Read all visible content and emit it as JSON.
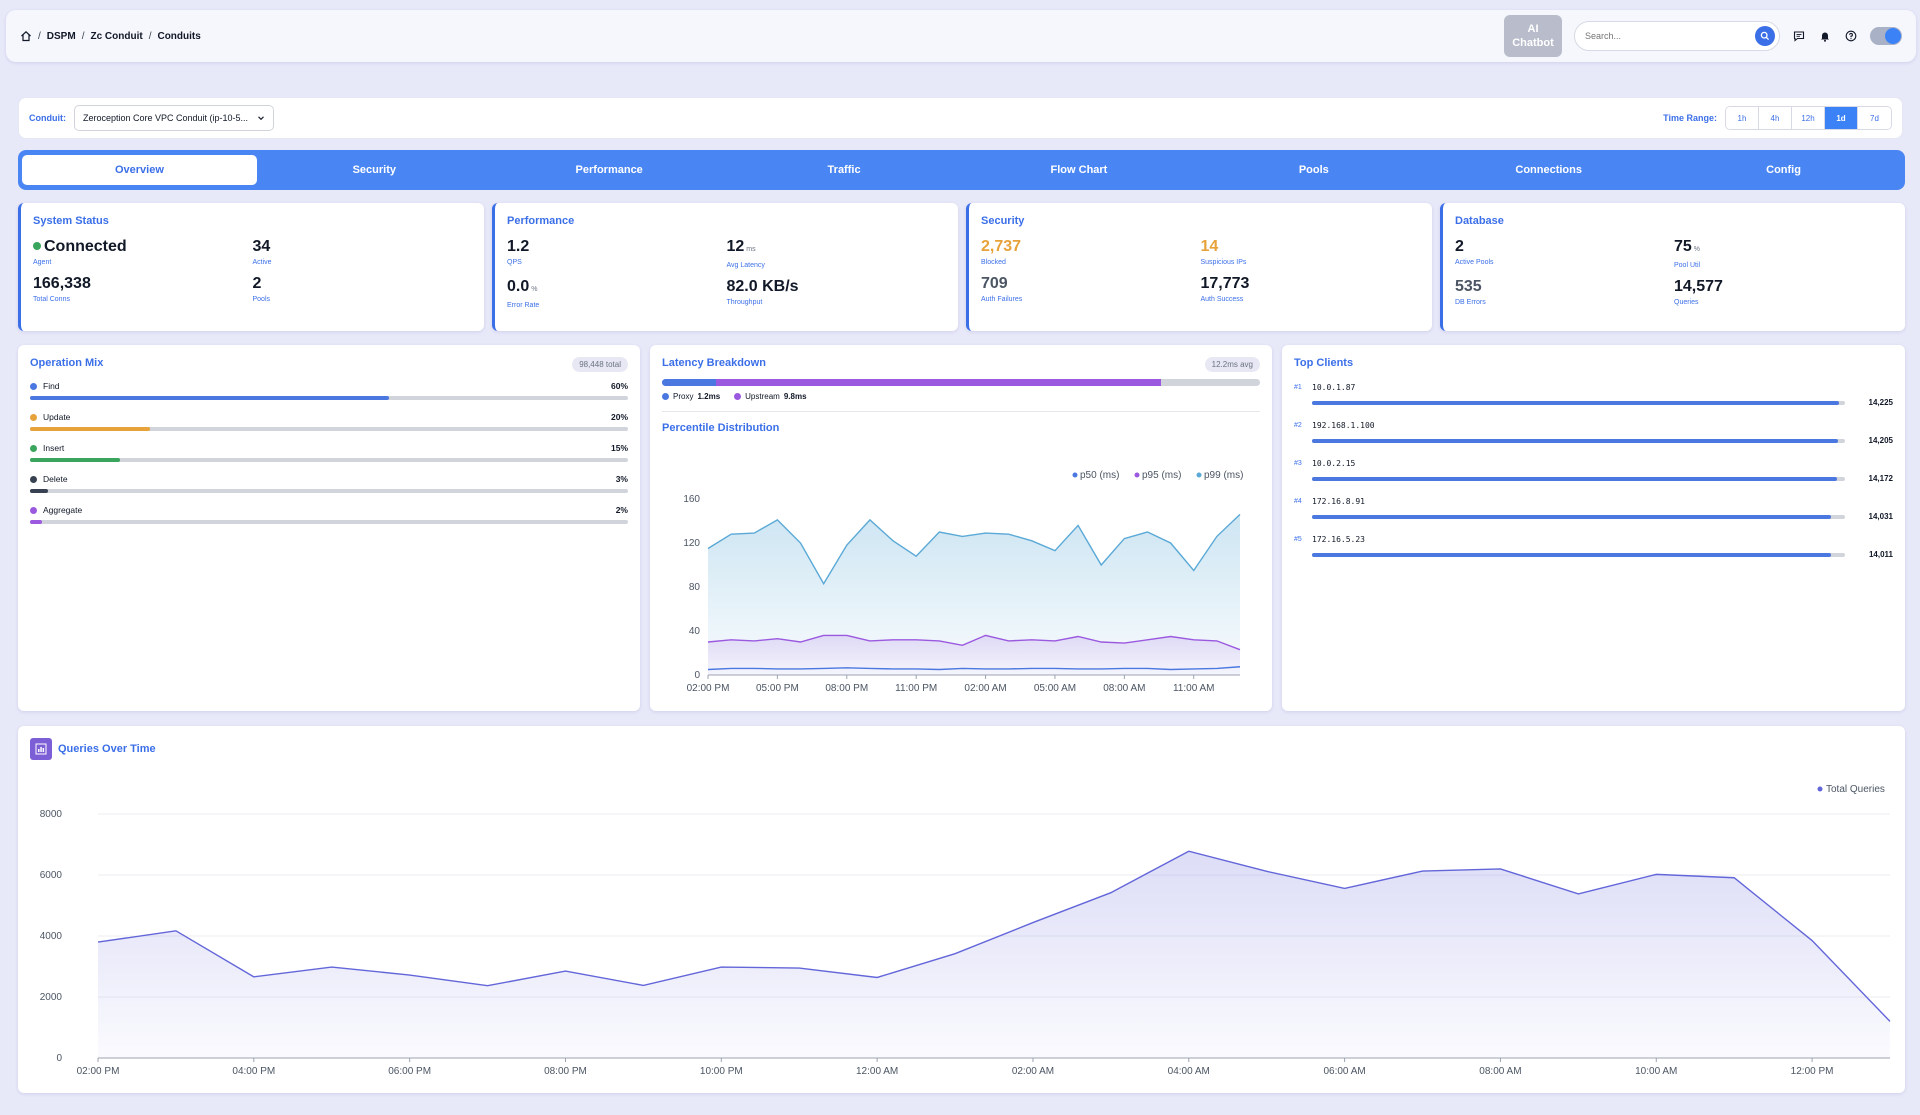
{
  "breadcrumb": {
    "items": [
      "DSPM",
      "Zc Conduit",
      "Conduits"
    ]
  },
  "header": {
    "ai_chatbot_line1": "AI",
    "ai_chatbot_line2": "Chatbot",
    "search_placeholder": "Search..."
  },
  "filter": {
    "conduit_label": "Conduit:",
    "conduit_value": "Zeroception Core VPC Conduit (ip-10-5...",
    "time_range_label": "Time Range:",
    "time_options": [
      "1h",
      "4h",
      "12h",
      "1d",
      "7d"
    ],
    "time_selected": "1d"
  },
  "tabs": [
    "Overview",
    "Security",
    "Performance",
    "Traffic",
    "Flow Chart",
    "Pools",
    "Connections",
    "Config"
  ],
  "cards": {
    "system_status": {
      "title": "System Status",
      "agent_value": "Connected",
      "agent_label": "Agent",
      "active_value": "34",
      "active_label": "Active",
      "total_conns_value": "166,338",
      "total_conns_label": "Total Conns",
      "pools_value": "2",
      "pools_label": "Pools"
    },
    "performance": {
      "title": "Performance",
      "qps_value": "1.2",
      "qps_label": "QPS",
      "latency_value": "12",
      "latency_unit": "ms",
      "latency_label": "Avg Latency",
      "error_value": "0.0",
      "error_unit": "%",
      "error_label": "Error Rate",
      "throughput_value": "82.0 KB/s",
      "throughput_label": "Throughput"
    },
    "security": {
      "title": "Security",
      "blocked_value": "2,737",
      "blocked_label": "Blocked",
      "suspicious_value": "14",
      "suspicious_label": "Suspicious IPs",
      "auth_fail_value": "709",
      "auth_fail_label": "Auth Failures",
      "auth_success_value": "17,773",
      "auth_success_label": "Auth Success"
    },
    "database": {
      "title": "Database",
      "active_pools_value": "2",
      "active_pools_label": "Active Pools",
      "pool_util_value": "75",
      "pool_util_unit": "%",
      "pool_util_label": "Pool Util",
      "db_errors_value": "535",
      "db_errors_label": "DB Errors",
      "queries_value": "14,577",
      "queries_label": "Queries"
    }
  },
  "operation_mix": {
    "title": "Operation Mix",
    "total": "98,448 total",
    "items": [
      {
        "name": "Find",
        "pct_label": "60%",
        "pct": 60,
        "color": "#4a78e0"
      },
      {
        "name": "Update",
        "pct_label": "20%",
        "pct": 20,
        "color": "#e7a23a"
      },
      {
        "name": "Insert",
        "pct_label": "15%",
        "pct": 15,
        "color": "#3aa55d"
      },
      {
        "name": "Delete",
        "pct_label": "3%",
        "pct": 3,
        "color": "#374151"
      },
      {
        "name": "Aggregate",
        "pct_label": "2%",
        "pct": 2,
        "color": "#9b59e0"
      }
    ]
  },
  "latency": {
    "title": "Latency Breakdown",
    "avg": "12.2ms avg",
    "proxy_label": "Proxy",
    "proxy_value": "1.2ms",
    "proxy_ms": 1.2,
    "upstream_label": "Upstream",
    "upstream_value": "9.8ms",
    "upstream_ms": 9.8,
    "percentile_title": "Percentile Distribution"
  },
  "top_clients": {
    "title": "Top Clients",
    "items": [
      {
        "rank": "#1",
        "ip": "10.0.1.87",
        "count": "14,225",
        "value": 14225
      },
      {
        "rank": "#2",
        "ip": "192.168.1.100",
        "count": "14,205",
        "value": 14205
      },
      {
        "rank": "#3",
        "ip": "10.0.2.15",
        "count": "14,172",
        "value": 14172
      },
      {
        "rank": "#4",
        "ip": "172.16.8.91",
        "count": "14,031",
        "value": 14031
      },
      {
        "rank": "#5",
        "ip": "172.16.5.23",
        "count": "14,011",
        "value": 14011
      }
    ]
  },
  "queries_panel": {
    "title": "Queries Over Time"
  },
  "colors": {
    "accent": "#3b6fe8",
    "p50": "#4a78e0",
    "p95": "#9b59e0",
    "p99": "#5aa9d6",
    "queries": "#6366d9"
  },
  "chart_data": [
    {
      "type": "line",
      "title": "Percentile Distribution",
      "x": [
        "02:00 PM",
        "03:00 PM",
        "04:00 PM",
        "05:00 PM",
        "06:00 PM",
        "07:00 PM",
        "08:00 PM",
        "09:00 PM",
        "10:00 PM",
        "11:00 PM",
        "12:00 AM",
        "01:00 AM",
        "02:00 AM",
        "03:00 AM",
        "04:00 AM",
        "05:00 AM",
        "06:00 AM",
        "07:00 AM",
        "08:00 AM",
        "09:00 AM",
        "10:00 AM",
        "11:00 AM",
        "12:00 PM",
        "01:00 PM"
      ],
      "x_ticks": [
        "02:00 PM",
        "05:00 PM",
        "08:00 PM",
        "11:00 PM",
        "02:00 AM",
        "05:00 AM",
        "08:00 AM",
        "11:00 AM"
      ],
      "ylim": [
        0,
        160
      ],
      "y_ticks": [
        0,
        40,
        80,
        120,
        160
      ],
      "series": [
        {
          "name": "p50 (ms)",
          "values": [
            5,
            6,
            6,
            5.5,
            5.5,
            6,
            6.5,
            6,
            5.5,
            5.5,
            5,
            6,
            5.5,
            5.5,
            6,
            6,
            5.5,
            5.5,
            6,
            6,
            5,
            5.5,
            6,
            7.5
          ]
        },
        {
          "name": "p95 (ms)",
          "values": [
            30,
            32,
            31,
            33,
            30,
            36,
            36,
            31,
            32,
            32,
            31,
            27,
            36,
            31,
            32,
            31,
            35,
            30,
            29,
            32,
            35,
            32,
            31,
            23
          ]
        },
        {
          "name": "p99 (ms)",
          "values": [
            115,
            128,
            129,
            141,
            120,
            83,
            118,
            141,
            122,
            108,
            130,
            126,
            129,
            128,
            122,
            113,
            136,
            100,
            124,
            130,
            120,
            95,
            126,
            146
          ]
        }
      ]
    },
    {
      "type": "area",
      "title": "Queries Over Time",
      "x": [
        "02:00 PM",
        "03:00 PM",
        "04:00 PM",
        "05:00 PM",
        "06:00 PM",
        "07:00 PM",
        "08:00 PM",
        "09:00 PM",
        "10:00 PM",
        "11:00 PM",
        "12:00 AM",
        "01:00 AM",
        "02:00 AM",
        "03:00 AM",
        "04:00 AM",
        "05:00 AM",
        "06:00 AM",
        "07:00 AM",
        "08:00 AM",
        "09:00 AM",
        "10:00 AM",
        "11:00 AM",
        "12:00 PM",
        "01:00 PM"
      ],
      "x_ticks": [
        "02:00 PM",
        "04:00 PM",
        "06:00 PM",
        "08:00 PM",
        "10:00 PM",
        "12:00 AM",
        "02:00 AM",
        "04:00 AM",
        "06:00 AM",
        "08:00 AM",
        "10:00 AM",
        "12:00 PM"
      ],
      "ylim": [
        0,
        8000
      ],
      "y_ticks": [
        0,
        2000,
        4000,
        6000,
        8000
      ],
      "legend": "top-right",
      "series": [
        {
          "name": "Total Queries",
          "values": [
            3800,
            4170,
            2660,
            2980,
            2720,
            2370,
            2850,
            2380,
            2980,
            2950,
            2640,
            3420,
            4440,
            5420,
            6780,
            6120,
            5560,
            6130,
            6200,
            5380,
            6020,
            5910,
            3850,
            1200
          ]
        }
      ]
    }
  ]
}
